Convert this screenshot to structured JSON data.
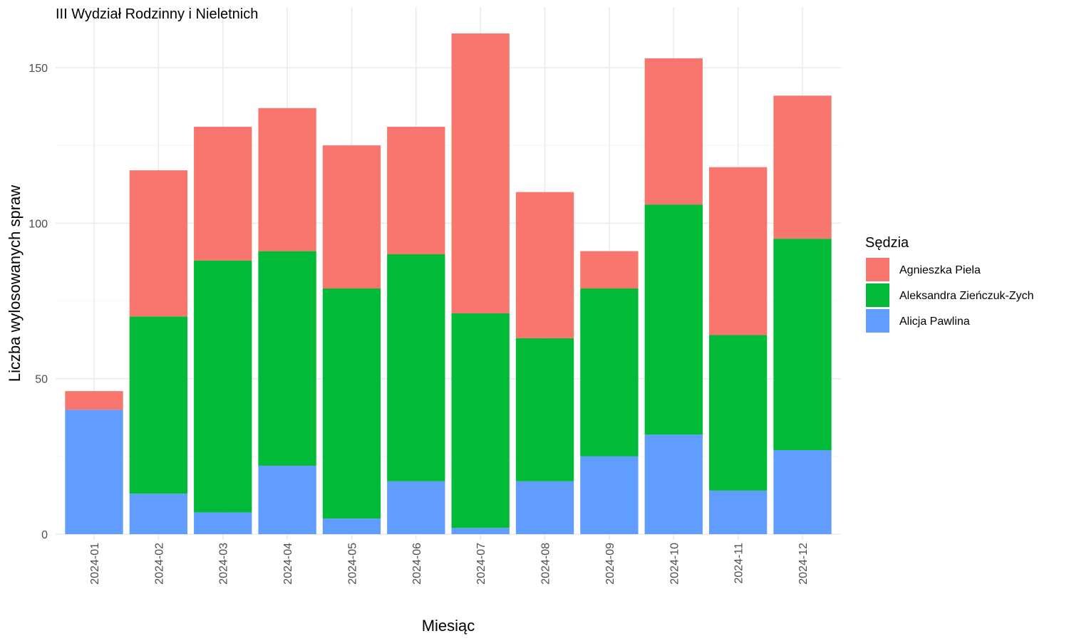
{
  "chart_data": {
    "type": "bar",
    "stacked": true,
    "title": "III Wydział Rodzinny i Nieletnich",
    "xlabel": "Miesiąc",
    "ylabel": "Liczba wylosowanych spraw",
    "ylim": [
      0,
      162
    ],
    "yticks": [
      0,
      50,
      100,
      150
    ],
    "grid": true,
    "legend_title": "Sędzia",
    "legend_position": "right",
    "categories": [
      "2024-01",
      "2024-02",
      "2024-03",
      "2024-04",
      "2024-05",
      "2024-06",
      "2024-07",
      "2024-08",
      "2024-09",
      "2024-10",
      "2024-11",
      "2024-12"
    ],
    "series": [
      {
        "name": "Alicja Pawlina",
        "color": "#619CFF",
        "values": [
          40,
          13,
          7,
          22,
          5,
          17,
          2,
          17,
          25,
          32,
          14,
          27
        ]
      },
      {
        "name": "Aleksandra Zieńczuk-Zych",
        "color": "#00BA38",
        "values": [
          0,
          57,
          81,
          69,
          74,
          73,
          69,
          46,
          54,
          74,
          50,
          68
        ]
      },
      {
        "name": "Agnieszka Piela",
        "color": "#F8766D",
        "values": [
          6,
          47,
          43,
          46,
          46,
          41,
          90,
          47,
          12,
          47,
          54,
          46
        ]
      }
    ],
    "legend_order": [
      "Agnieszka Piela",
      "Aleksandra Zieńczuk-Zych",
      "Alicja Pawlina"
    ]
  }
}
